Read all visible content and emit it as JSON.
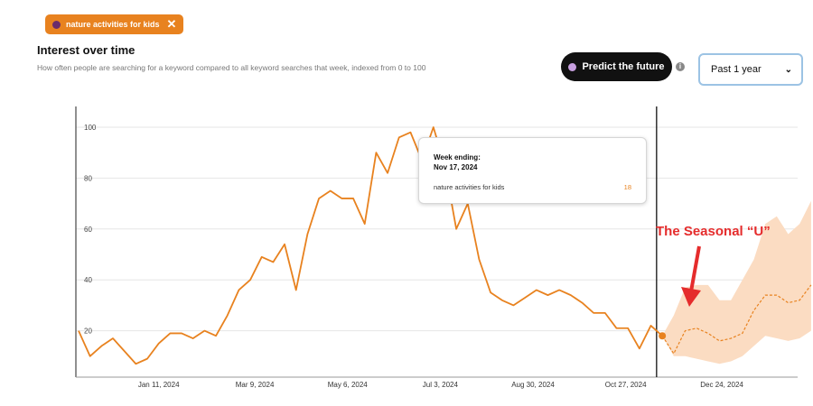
{
  "chip": {
    "label": "nature activities for kids"
  },
  "header": {
    "title": "Interest over time",
    "subtitle": "How often people are searching for a keyword compared to all keyword searches that week, indexed from 0 to 100"
  },
  "predict_button": {
    "label": "Predict the future"
  },
  "range_select": {
    "value": "Past 1 year"
  },
  "tooltip": {
    "heading": "Week ending:",
    "date": "Nov 17, 2024",
    "series": "nature activities for kids",
    "value": "18"
  },
  "annotation": {
    "text": "The Seasonal “U”"
  },
  "colors": {
    "accent": "#e8821f",
    "band": "#fbdcc2",
    "annotation": "#e52c2c",
    "text": "#111111"
  },
  "chart_data": {
    "type": "line",
    "ylim": [
      0,
      100
    ],
    "y_ticks": [
      20,
      40,
      60,
      80,
      100
    ],
    "x_tick_labels": [
      "Jan 11, 2024",
      "Mar 9, 2024",
      "May 6, 2024",
      "Jul 3, 2024",
      "Aug 30, 2024",
      "Oct 27, 2024",
      "Dec 24, 2024"
    ],
    "x_tick_index": [
      7,
      15.4,
      23.5,
      31.6,
      39.7,
      47.8,
      56.2
    ],
    "marker_index": 50.5,
    "series": [
      {
        "name": "nature activities for kids",
        "values": [
          20,
          10,
          14,
          17,
          12,
          7,
          9,
          15,
          19,
          19,
          17,
          20,
          18,
          26,
          36,
          40,
          49,
          47,
          54,
          36,
          58,
          72,
          75,
          72,
          72,
          62,
          90,
          82,
          96,
          98,
          87,
          100,
          85,
          60,
          70,
          48,
          35,
          32,
          30,
          33,
          36,
          34,
          36,
          34,
          31,
          27,
          27,
          21,
          21,
          13,
          22,
          18
        ]
      }
    ],
    "forecast": {
      "x_start": 51,
      "values": [
        18,
        11,
        20,
        21,
        19,
        16,
        17,
        19,
        28,
        34,
        34,
        31,
        32,
        38
      ],
      "upper": [
        18,
        26,
        37,
        38,
        38,
        32,
        32,
        40,
        48,
        62,
        65,
        58,
        62,
        71
      ],
      "lower": [
        18,
        10,
        10,
        9,
        8,
        7,
        8,
        10,
        14,
        18,
        17,
        16,
        17,
        20
      ]
    }
  }
}
